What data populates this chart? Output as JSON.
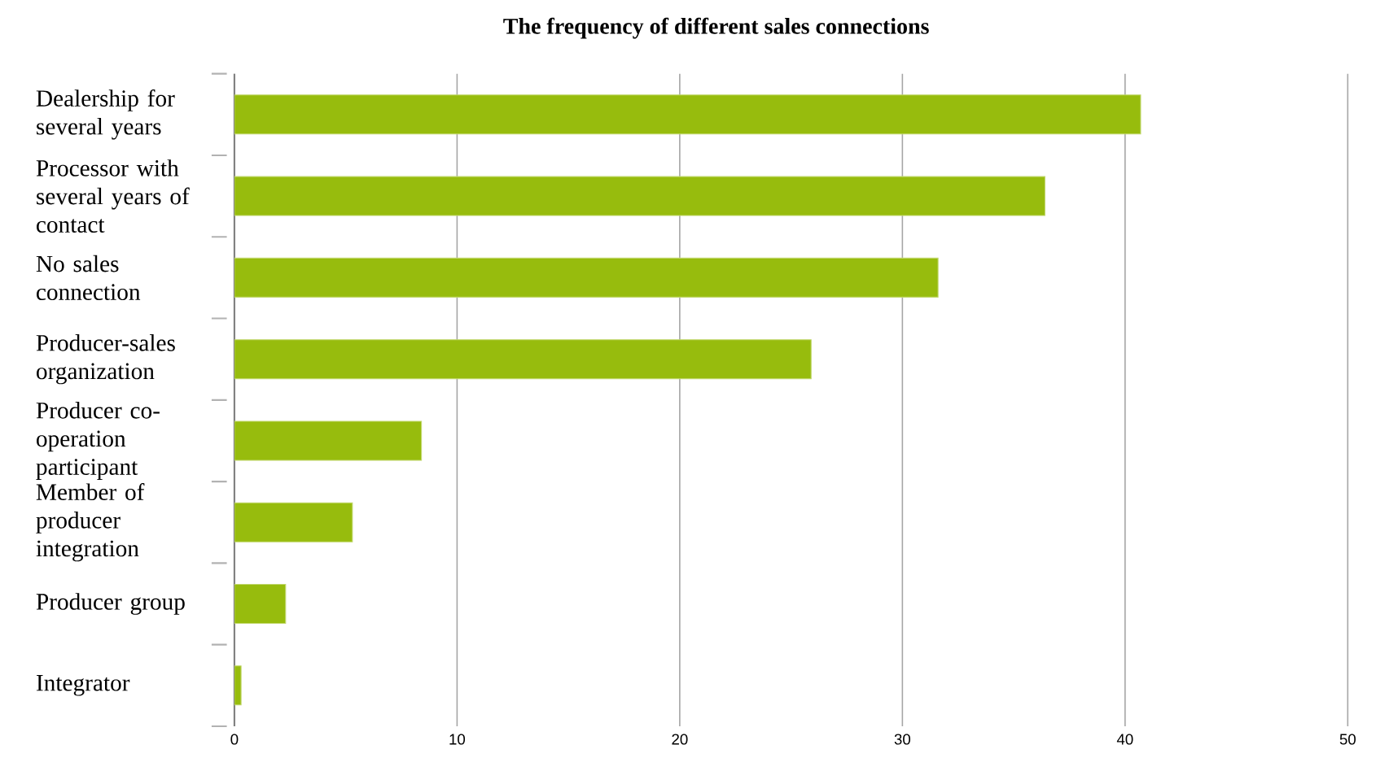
{
  "chart_data": {
    "type": "bar",
    "orientation": "horizontal",
    "title": "The frequency of different sales connections",
    "categories": [
      "Dealership for several years",
      "Processor with several years of contact",
      "No sales connection",
      "Producer-sales organization",
      "Producer co-operation participant",
      "Member of producer integration",
      "Producer group",
      "Integrator"
    ],
    "values": [
      40.7,
      36.4,
      31.6,
      25.9,
      8.4,
      5.3,
      2.3,
      0.3
    ],
    "color": "#97bc0d",
    "xlim": [
      0,
      50
    ],
    "xticks": [
      0,
      10,
      20,
      30,
      40,
      50
    ],
    "grid": "x"
  }
}
